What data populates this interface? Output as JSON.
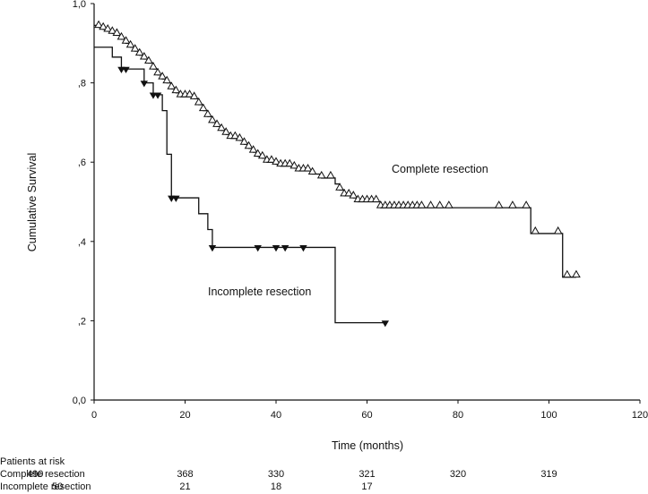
{
  "chart_data": {
    "type": "line",
    "subtype": "kaplan-meier",
    "xlabel": "Time (months)",
    "ylabel": "Cumulative Survival",
    "xlim": [
      0,
      120
    ],
    "ylim": [
      0,
      1
    ],
    "x_ticks": [
      0,
      20,
      40,
      60,
      80,
      100,
      120
    ],
    "x_tick_labels": [
      "0",
      "20",
      "40",
      "60",
      "80",
      "100",
      "120"
    ],
    "y_ticks": [
      0,
      0.2,
      0.4,
      0.6,
      0.8,
      1.0
    ],
    "y_tick_labels": [
      "0,0",
      ",2",
      ",4",
      ",6",
      ",8",
      "1,0"
    ],
    "grid": false,
    "legend": "none",
    "series": [
      {
        "name": "Complete resection",
        "marker": "open-triangle-up",
        "steps": [
          [
            0,
            0.945
          ],
          [
            1,
            0.94
          ],
          [
            2,
            0.935
          ],
          [
            3,
            0.93
          ],
          [
            4,
            0.925
          ],
          [
            5,
            0.92
          ],
          [
            6,
            0.91
          ],
          [
            7,
            0.9
          ],
          [
            8,
            0.89
          ],
          [
            9,
            0.88
          ],
          [
            10,
            0.87
          ],
          [
            11,
            0.86
          ],
          [
            12,
            0.85
          ],
          [
            13,
            0.835
          ],
          [
            14,
            0.82
          ],
          [
            15,
            0.81
          ],
          [
            16,
            0.8
          ],
          [
            17,
            0.785
          ],
          [
            18,
            0.775
          ],
          [
            19,
            0.765
          ],
          [
            22,
            0.76
          ],
          [
            23,
            0.745
          ],
          [
            24,
            0.73
          ],
          [
            25,
            0.715
          ],
          [
            26,
            0.7
          ],
          [
            27,
            0.69
          ],
          [
            28,
            0.68
          ],
          [
            29,
            0.67
          ],
          [
            30,
            0.66
          ],
          [
            32,
            0.655
          ],
          [
            33,
            0.645
          ],
          [
            34,
            0.635
          ],
          [
            35,
            0.625
          ],
          [
            36,
            0.615
          ],
          [
            37,
            0.61
          ],
          [
            38,
            0.6
          ],
          [
            40,
            0.595
          ],
          [
            41,
            0.59
          ],
          [
            44,
            0.585
          ],
          [
            45,
            0.578
          ],
          [
            48,
            0.57
          ],
          [
            50,
            0.56
          ],
          [
            53,
            0.545
          ],
          [
            54,
            0.53
          ],
          [
            55,
            0.515
          ],
          [
            57,
            0.51
          ],
          [
            58,
            0.5
          ],
          [
            63,
            0.485
          ],
          [
            96,
            0.42
          ],
          [
            103,
            0.31
          ]
        ],
        "end_x": 106,
        "censored": [
          [
            1,
            0.94
          ],
          [
            2,
            0.935
          ],
          [
            3,
            0.93
          ],
          [
            4,
            0.925
          ],
          [
            5,
            0.92
          ],
          [
            6,
            0.91
          ],
          [
            7,
            0.9
          ],
          [
            8,
            0.89
          ],
          [
            9,
            0.88
          ],
          [
            10,
            0.87
          ],
          [
            11,
            0.86
          ],
          [
            12,
            0.85
          ],
          [
            13,
            0.835
          ],
          [
            14,
            0.82
          ],
          [
            15,
            0.81
          ],
          [
            16,
            0.8
          ],
          [
            17,
            0.785
          ],
          [
            18,
            0.775
          ],
          [
            19,
            0.765
          ],
          [
            20,
            0.765
          ],
          [
            21,
            0.765
          ],
          [
            22,
            0.76
          ],
          [
            23,
            0.745
          ],
          [
            24,
            0.73
          ],
          [
            25,
            0.715
          ],
          [
            26,
            0.7
          ],
          [
            27,
            0.69
          ],
          [
            28,
            0.68
          ],
          [
            29,
            0.67
          ],
          [
            30,
            0.66
          ],
          [
            31,
            0.66
          ],
          [
            32,
            0.655
          ],
          [
            33,
            0.645
          ],
          [
            34,
            0.635
          ],
          [
            35,
            0.625
          ],
          [
            36,
            0.615
          ],
          [
            37,
            0.61
          ],
          [
            38,
            0.6
          ],
          [
            39,
            0.6
          ],
          [
            40,
            0.595
          ],
          [
            41,
            0.59
          ],
          [
            42,
            0.59
          ],
          [
            43,
            0.59
          ],
          [
            44,
            0.585
          ],
          [
            45,
            0.578
          ],
          [
            46,
            0.578
          ],
          [
            47,
            0.578
          ],
          [
            48,
            0.57
          ],
          [
            50,
            0.56
          ],
          [
            52,
            0.56
          ],
          [
            54,
            0.53
          ],
          [
            55,
            0.515
          ],
          [
            56,
            0.515
          ],
          [
            57,
            0.51
          ],
          [
            58,
            0.5
          ],
          [
            59,
            0.5
          ],
          [
            60,
            0.5
          ],
          [
            61,
            0.5
          ],
          [
            62,
            0.5
          ],
          [
            63,
            0.485
          ],
          [
            64,
            0.485
          ],
          [
            65,
            0.485
          ],
          [
            66,
            0.485
          ],
          [
            67,
            0.485
          ],
          [
            68,
            0.485
          ],
          [
            69,
            0.485
          ],
          [
            70,
            0.485
          ],
          [
            71,
            0.485
          ],
          [
            72,
            0.485
          ],
          [
            74,
            0.485
          ],
          [
            76,
            0.485
          ],
          [
            78,
            0.485
          ],
          [
            89,
            0.485
          ],
          [
            92,
            0.485
          ],
          [
            95,
            0.485
          ],
          [
            97,
            0.42
          ],
          [
            102,
            0.42
          ],
          [
            104,
            0.31
          ],
          [
            106,
            0.31
          ]
        ]
      },
      {
        "name": "Incomplete resection",
        "marker": "filled-triangle-down",
        "steps": [
          [
            0,
            0.89
          ],
          [
            4,
            0.865
          ],
          [
            6,
            0.835
          ],
          [
            8,
            0.835
          ],
          [
            11,
            0.8
          ],
          [
            13,
            0.77
          ],
          [
            15,
            0.73
          ],
          [
            16,
            0.62
          ],
          [
            17,
            0.51
          ],
          [
            23,
            0.47
          ],
          [
            25,
            0.43
          ],
          [
            26,
            0.385
          ],
          [
            53,
            0.195
          ]
        ],
        "end_x": 64,
        "censored": [
          [
            6,
            0.835
          ],
          [
            7,
            0.835
          ],
          [
            11,
            0.8
          ],
          [
            13,
            0.77
          ],
          [
            14,
            0.77
          ],
          [
            17,
            0.51
          ],
          [
            18,
            0.51
          ],
          [
            26,
            0.385
          ],
          [
            36,
            0.385
          ],
          [
            40,
            0.385
          ],
          [
            42,
            0.385
          ],
          [
            46,
            0.385
          ],
          [
            64,
            0.195
          ]
        ]
      }
    ],
    "annotations": [
      "Complete resection",
      "Incomplete resection"
    ],
    "risk_table": {
      "header": "Patients at risk",
      "rows": [
        {
          "label": "Complete resection",
          "values": [
            "490",
            "368",
            "330",
            "321",
            "320",
            "319"
          ]
        },
        {
          "label": "Incomplete resection",
          "values": [
            "50",
            "21",
            "18",
            "17"
          ]
        }
      ]
    }
  }
}
